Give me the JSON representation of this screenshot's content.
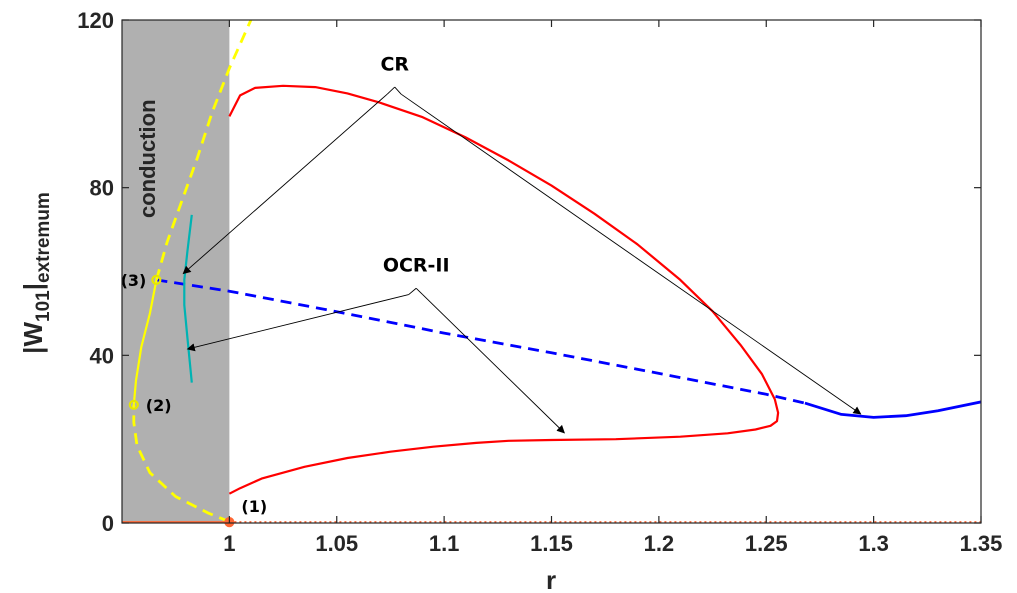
{
  "chart_data": {
    "type": "line",
    "title": "",
    "xlabel": "r",
    "ylabel": {
      "main": "|W",
      "sub1": "101",
      "mid": "|",
      "sub2": "extremum"
    },
    "xlim": [
      0.95,
      1.35
    ],
    "ylim": [
      0,
      120
    ],
    "xticks": [
      {
        "value": 1,
        "label": "1"
      },
      {
        "value": 1.05,
        "label": "1.05"
      },
      {
        "value": 1.1,
        "label": "1.1"
      },
      {
        "value": 1.15,
        "label": "1.15"
      },
      {
        "value": 1.2,
        "label": "1.2"
      },
      {
        "value": 1.25,
        "label": "1.25"
      },
      {
        "value": 1.3,
        "label": "1.3"
      },
      {
        "value": 1.35,
        "label": "1.35"
      }
    ],
    "yticks": [
      {
        "value": 0,
        "label": "0"
      },
      {
        "value": 40,
        "label": "40"
      },
      {
        "value": 80,
        "label": "80"
      },
      {
        "value": 120,
        "label": "120"
      }
    ],
    "grid": false,
    "region": {
      "label": "conduction",
      "x": [
        0.95,
        1.0
      ],
      "color": "#b0b0b0"
    },
    "series": [
      {
        "color": "#ff0000",
        "style": "solid",
        "width": 2.2,
        "points": [
          [
            1.0,
            97
          ],
          [
            1.005,
            102
          ],
          [
            1.012,
            103.8
          ],
          [
            1.025,
            104.3
          ],
          [
            1.04,
            104.0
          ],
          [
            1.055,
            102.5
          ],
          [
            1.07,
            100.3
          ],
          [
            1.09,
            96.8
          ],
          [
            1.11,
            92.0
          ],
          [
            1.13,
            86.5
          ],
          [
            1.15,
            80.5
          ],
          [
            1.17,
            73.8
          ],
          [
            1.19,
            66.5
          ],
          [
            1.21,
            58.0
          ],
          [
            1.225,
            50.5
          ],
          [
            1.238,
            42.5
          ],
          [
            1.248,
            35.5
          ],
          [
            1.254,
            29.5
          ],
          [
            1.2555,
            26.3
          ],
          [
            1.255,
            24.3
          ],
          [
            1.252,
            23.2
          ],
          [
            1.245,
            22.3
          ],
          [
            1.232,
            21.4
          ],
          [
            1.21,
            20.6
          ],
          [
            1.18,
            20.0
          ],
          [
            1.15,
            19.8
          ],
          [
            1.13,
            19.6
          ],
          [
            1.115,
            19.1
          ],
          [
            1.095,
            18.2
          ],
          [
            1.075,
            17.0
          ],
          [
            1.055,
            15.5
          ],
          [
            1.035,
            13.4
          ],
          [
            1.015,
            10.6
          ],
          [
            1.005,
            8.3
          ],
          [
            1.0,
            7.0
          ]
        ]
      },
      {
        "color": "#0000ff",
        "style": "dashed",
        "width": 2.8,
        "points": [
          [
            0.966,
            58.0
          ],
          [
            1.0,
            55.3
          ],
          [
            1.05,
            50.4
          ],
          [
            1.1,
            45.3
          ],
          [
            1.15,
            40.6
          ],
          [
            1.2,
            35.7
          ],
          [
            1.25,
            30.7
          ],
          [
            1.268,
            28.6
          ]
        ]
      },
      {
        "color": "#0000ff",
        "style": "solid",
        "width": 2.8,
        "points": [
          [
            1.268,
            28.6
          ],
          [
            1.285,
            25.9
          ],
          [
            1.3,
            25.2
          ],
          [
            1.315,
            25.6
          ],
          [
            1.33,
            26.8
          ],
          [
            1.35,
            28.9
          ]
        ]
      },
      {
        "color": "#ffff00",
        "style": "dashed",
        "width": 2.8,
        "points": [
          [
            1.0,
            0.3
          ],
          [
            0.99,
            2.4
          ],
          [
            0.975,
            6.3
          ],
          [
            0.963,
            12.0
          ],
          [
            0.957,
            18.5
          ],
          [
            0.9555,
            24.0
          ],
          [
            0.9555,
            28.2
          ]
        ]
      },
      {
        "color": "#ffff00",
        "style": "solid",
        "width": 2.2,
        "points": [
          [
            0.9555,
            28.2
          ],
          [
            0.9565,
            34.0
          ],
          [
            0.959,
            42.0
          ],
          [
            0.963,
            50.0
          ],
          [
            0.966,
            58.0
          ]
        ]
      },
      {
        "color": "#ffff00",
        "style": "dashed",
        "width": 2.8,
        "points": [
          [
            0.966,
            58.0
          ],
          [
            0.971,
            67.0
          ],
          [
            0.978,
            77.0
          ],
          [
            0.985,
            87.0
          ],
          [
            0.992,
            98.0
          ],
          [
            1.0,
            108.5
          ],
          [
            1.01,
            120.0
          ]
        ]
      },
      {
        "color": "#00b3b3",
        "style": "solid",
        "width": 2.2,
        "points": [
          [
            0.9825,
            73.5
          ],
          [
            0.9805,
            65.0
          ],
          [
            0.979,
            58.0
          ],
          [
            0.979,
            52.0
          ],
          [
            0.9805,
            44.0
          ],
          [
            0.9825,
            33.5
          ]
        ]
      },
      {
        "color": "#ff6633",
        "style": "solid",
        "width": 2.5,
        "points": [
          [
            0.95,
            0.15
          ],
          [
            1.0,
            0.15
          ]
        ]
      },
      {
        "color": "#ff6633",
        "style": "dotted",
        "width": 2.5,
        "points": [
          [
            1.0,
            0.15
          ],
          [
            1.35,
            0.15
          ]
        ]
      }
    ],
    "markers": [
      {
        "x": 1.0,
        "y": 0.2,
        "color": "#ff6633",
        "fill": "#ff6633",
        "r": 4,
        "label": "(1)",
        "label_side": "right"
      },
      {
        "x": 0.9555,
        "y": 28.2,
        "color": "#e6e600",
        "fill": "none",
        "r": 4,
        "label": "(2)",
        "label_side": "right"
      },
      {
        "x": 0.966,
        "y": 58.0,
        "color": "#e6e600",
        "fill": "none",
        "r": 4,
        "label": "(3)",
        "label_side": "left"
      }
    ],
    "annotations": [
      {
        "text": "CR",
        "anchor": [
          1.077,
          108.0
        ],
        "leaders": [
          [
            [
              1.077,
              104.0
            ],
            [
              1.0735,
              102.3
            ]
          ],
          [
            [
              1.077,
              104.0
            ],
            [
              1.08,
              102.3
            ]
          ]
        ],
        "arrows": [
          [
            [
              1.0735,
              102.3
            ],
            [
              0.9785,
              59.5
            ]
          ],
          [
            [
              1.08,
              102.3
            ],
            [
              1.294,
              26.0
            ]
          ]
        ]
      },
      {
        "text": "OCR-II",
        "anchor": [
          1.087,
          60.0
        ],
        "leaders": [
          [
            [
              1.087,
              56.0
            ],
            [
              1.0835,
              54.5
            ]
          ],
          [
            [
              1.087,
              56.0
            ],
            [
              1.09,
              54.5
            ]
          ]
        ],
        "arrows": [
          [
            [
              1.0835,
              54.5
            ],
            [
              0.9805,
              41.5
            ]
          ],
          [
            [
              1.09,
              54.5
            ],
            [
              1.156,
              21.5
            ]
          ]
        ]
      }
    ]
  }
}
